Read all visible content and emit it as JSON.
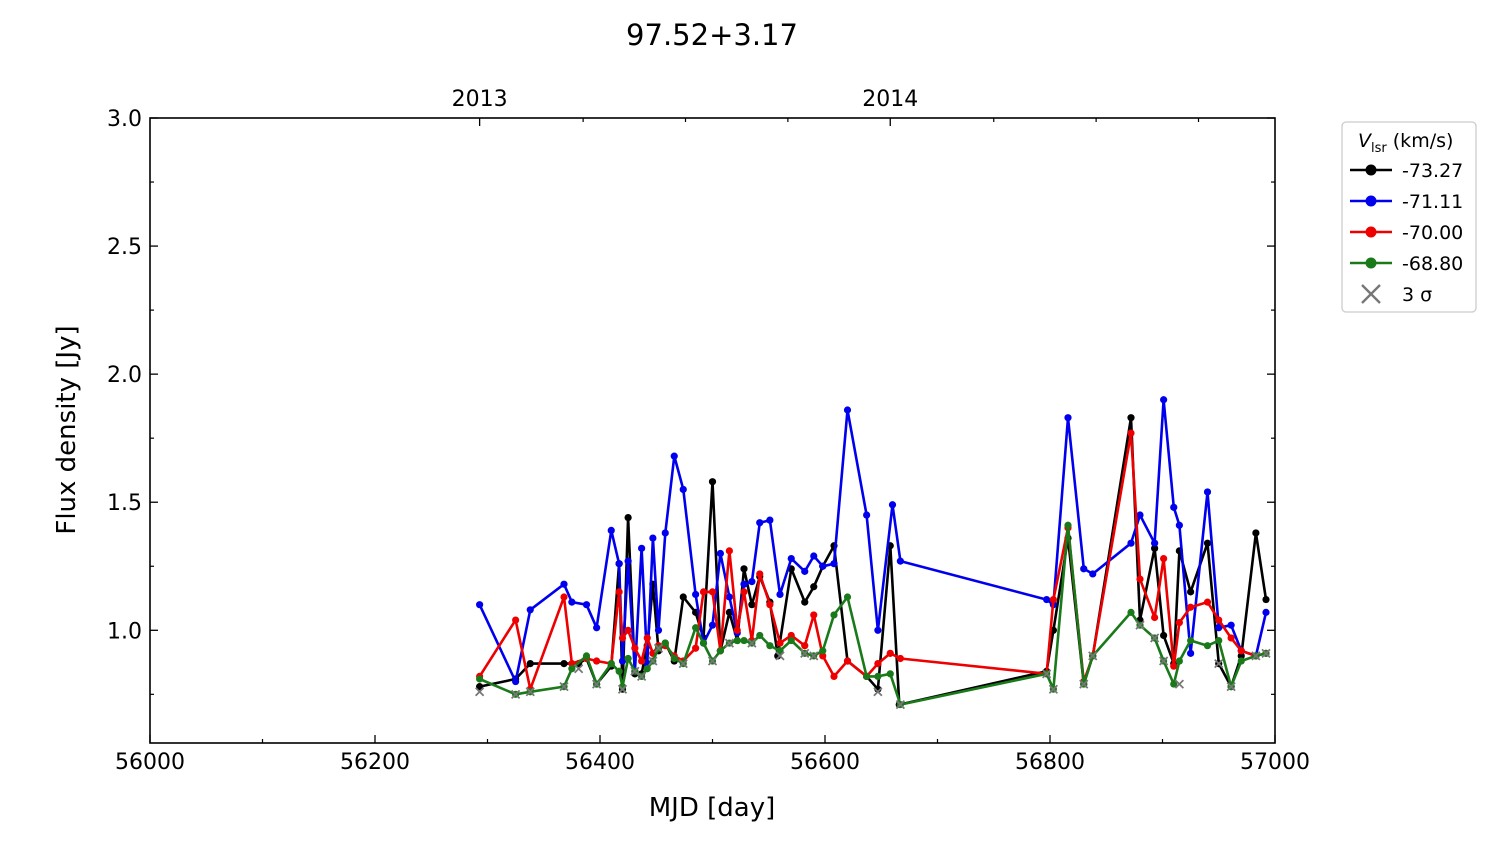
{
  "chart_data": {
    "type": "line",
    "title": "97.52+3.17",
    "xlabel": "MJD [day]",
    "ylabel": "Flux density [Jy]",
    "xlim": [
      56000,
      57000
    ],
    "ylim": [
      0.56,
      3.0
    ],
    "xticks": [
      "56000",
      "56200",
      "56400",
      "56600",
      "56800",
      "57000"
    ],
    "yticks": [
      "1.0",
      "1.5",
      "2.0",
      "2.5",
      "3.0"
    ],
    "top_axis": {
      "labels": [
        "2013",
        "2014"
      ],
      "label_mjd": [
        56293,
        56658
      ],
      "minor_mjd": [
        56385,
        56476,
        56567,
        56750,
        56841,
        56932
      ]
    },
    "grid": false,
    "legend": {
      "placement": "outside-right-top",
      "title_var": "V",
      "title_sub": "lsr",
      "title_unit": " (km/s)",
      "sigma_label": "3 σ"
    },
    "series": [
      {
        "name": "-73.27",
        "color": "#000000",
        "x": [
          56293,
          56325,
          56338,
          56368,
          56381,
          56388,
          56397,
          56410,
          56417,
          56420,
          56425,
          56431,
          56437,
          56442,
          56447,
          56452,
          56458,
          56466,
          56474,
          56485,
          56492,
          56500,
          56507,
          56515,
          56522,
          56528,
          56535,
          56542,
          56551,
          56558,
          56570,
          56582,
          56590,
          56598,
          56608,
          56620,
          56637,
          56647,
          56658,
          56666,
          56797,
          56803,
          56816,
          56830,
          56838,
          56872,
          56880,
          56893,
          56901,
          56910,
          56915,
          56925,
          56940,
          56950,
          56961,
          56970,
          56983,
          56992
        ],
        "y": [
          0.78,
          0.81,
          0.87,
          0.87,
          0.87,
          0.89,
          0.79,
          0.86,
          1.26,
          0.77,
          1.44,
          0.83,
          0.83,
          0.94,
          1.18,
          0.92,
          0.95,
          0.88,
          1.13,
          1.07,
          0.97,
          1.58,
          0.92,
          1.07,
          0.96,
          1.24,
          1.1,
          1.21,
          1.11,
          0.9,
          1.24,
          1.11,
          1.17,
          1.25,
          1.33,
          0.88,
          0.82,
          0.77,
          1.33,
          0.71,
          0.84,
          1.0,
          1.36,
          0.79,
          0.9,
          1.83,
          1.04,
          1.32,
          0.98,
          0.87,
          1.31,
          1.15,
          1.34,
          0.87,
          0.78,
          0.9,
          1.38,
          1.12
        ]
      },
      {
        "name": "-71.11",
        "color": "#0000ee",
        "x": [
          56293,
          56325,
          56338,
          56368,
          56375,
          56388,
          56397,
          56410,
          56417,
          56420,
          56425,
          56431,
          56437,
          56442,
          56447,
          56452,
          56458,
          56466,
          56474,
          56485,
          56492,
          56500,
          56507,
          56515,
          56522,
          56528,
          56535,
          56542,
          56551,
          56560,
          56570,
          56582,
          56590,
          56598,
          56608,
          56620,
          56637,
          56647,
          56660,
          56667,
          56797,
          56803,
          56816,
          56830,
          56838,
          56872,
          56880,
          56893,
          56901,
          56910,
          56915,
          56925,
          56940,
          56950,
          56961,
          56970,
          56983,
          56992
        ],
        "y": [
          1.1,
          0.8,
          1.08,
          1.18,
          1.11,
          1.1,
          1.01,
          1.39,
          1.26,
          0.88,
          1.27,
          0.84,
          1.32,
          0.87,
          1.36,
          1.0,
          1.38,
          1.68,
          1.55,
          1.14,
          0.95,
          1.02,
          1.3,
          1.13,
          0.99,
          1.18,
          1.19,
          1.42,
          1.43,
          1.14,
          1.28,
          1.23,
          1.29,
          1.25,
          1.26,
          1.86,
          1.45,
          1.0,
          1.49,
          1.27,
          1.12,
          1.1,
          1.83,
          1.24,
          1.22,
          1.34,
          1.45,
          1.34,
          1.9,
          1.48,
          1.41,
          0.91,
          1.54,
          1.01,
          1.02,
          0.92,
          0.9,
          1.07
        ]
      },
      {
        "name": "-70.00",
        "color": "#ee0000",
        "x": [
          56293,
          56325,
          56338,
          56368,
          56375,
          56388,
          56397,
          56410,
          56417,
          56420,
          56425,
          56431,
          56437,
          56442,
          56447,
          56452,
          56458,
          56466,
          56474,
          56485,
          56492,
          56500,
          56507,
          56515,
          56522,
          56528,
          56535,
          56542,
          56551,
          56560,
          56570,
          56582,
          56590,
          56598,
          56608,
          56620,
          56637,
          56647,
          56658,
          56667,
          56797,
          56803,
          56816,
          56830,
          56838,
          56872,
          56880,
          56893,
          56901,
          56910,
          56915,
          56925,
          56940,
          56950,
          56961,
          56970,
          56983,
          56992
        ],
        "y": [
          0.82,
          1.04,
          0.77,
          1.13,
          0.87,
          0.89,
          0.88,
          0.87,
          1.15,
          0.97,
          1.0,
          0.93,
          0.88,
          0.97,
          0.91,
          0.94,
          0.94,
          0.9,
          0.88,
          0.93,
          1.15,
          1.15,
          0.92,
          1.31,
          1.0,
          1.15,
          0.96,
          1.22,
          1.1,
          0.95,
          0.98,
          0.94,
          1.06,
          0.9,
          0.82,
          0.88,
          0.82,
          0.87,
          0.91,
          0.89,
          0.83,
          1.12,
          1.4,
          0.8,
          0.9,
          1.77,
          1.2,
          1.05,
          1.28,
          0.86,
          1.03,
          1.09,
          1.11,
          1.04,
          0.97,
          0.92,
          0.9,
          0.91
        ]
      },
      {
        "name": "-68.80",
        "color": "#1a7a1a",
        "x": [
          56293,
          56325,
          56338,
          56368,
          56375,
          56388,
          56397,
          56410,
          56417,
          56420,
          56425,
          56431,
          56437,
          56442,
          56447,
          56452,
          56458,
          56466,
          56474,
          56485,
          56492,
          56500,
          56507,
          56515,
          56522,
          56528,
          56535,
          56542,
          56551,
          56560,
          56570,
          56582,
          56590,
          56598,
          56608,
          56620,
          56637,
          56647,
          56658,
          56667,
          56797,
          56803,
          56816,
          56830,
          56838,
          56872,
          56880,
          56893,
          56901,
          56910,
          56915,
          56925,
          56940,
          56950,
          56961,
          56970,
          56983,
          56992
        ],
        "y": [
          0.81,
          0.75,
          0.76,
          0.78,
          0.85,
          0.9,
          0.79,
          0.87,
          0.84,
          0.78,
          0.89,
          0.84,
          0.82,
          0.85,
          0.88,
          0.93,
          0.95,
          0.89,
          0.87,
          1.01,
          0.95,
          0.88,
          0.92,
          0.95,
          0.96,
          0.96,
          0.95,
          0.98,
          0.94,
          0.92,
          0.96,
          0.91,
          0.9,
          0.92,
          1.06,
          1.13,
          0.82,
          0.82,
          0.83,
          0.71,
          0.83,
          0.77,
          1.41,
          0.79,
          0.9,
          1.07,
          1.02,
          0.97,
          0.88,
          0.79,
          0.88,
          0.96,
          0.94,
          0.96,
          0.78,
          0.88,
          0.9,
          0.91
        ]
      }
    ],
    "three_sigma": {
      "color": "#777777",
      "x": [
        56293,
        56325,
        56338,
        56368,
        56381,
        56397,
        56420,
        56431,
        56437,
        56447,
        56452,
        56474,
        56500,
        56515,
        56535,
        56560,
        56582,
        56590,
        56647,
        56667,
        56797,
        56803,
        56830,
        56838,
        56880,
        56893,
        56901,
        56915,
        56950,
        56961,
        56983,
        56992
      ],
      "y": [
        0.76,
        0.75,
        0.76,
        0.78,
        0.85,
        0.79,
        0.77,
        0.84,
        0.82,
        0.88,
        0.93,
        0.87,
        0.88,
        0.95,
        0.95,
        0.9,
        0.91,
        0.9,
        0.76,
        0.71,
        0.83,
        0.77,
        0.79,
        0.9,
        1.02,
        0.97,
        0.88,
        0.79,
        0.87,
        0.78,
        0.9,
        0.91
      ]
    }
  }
}
